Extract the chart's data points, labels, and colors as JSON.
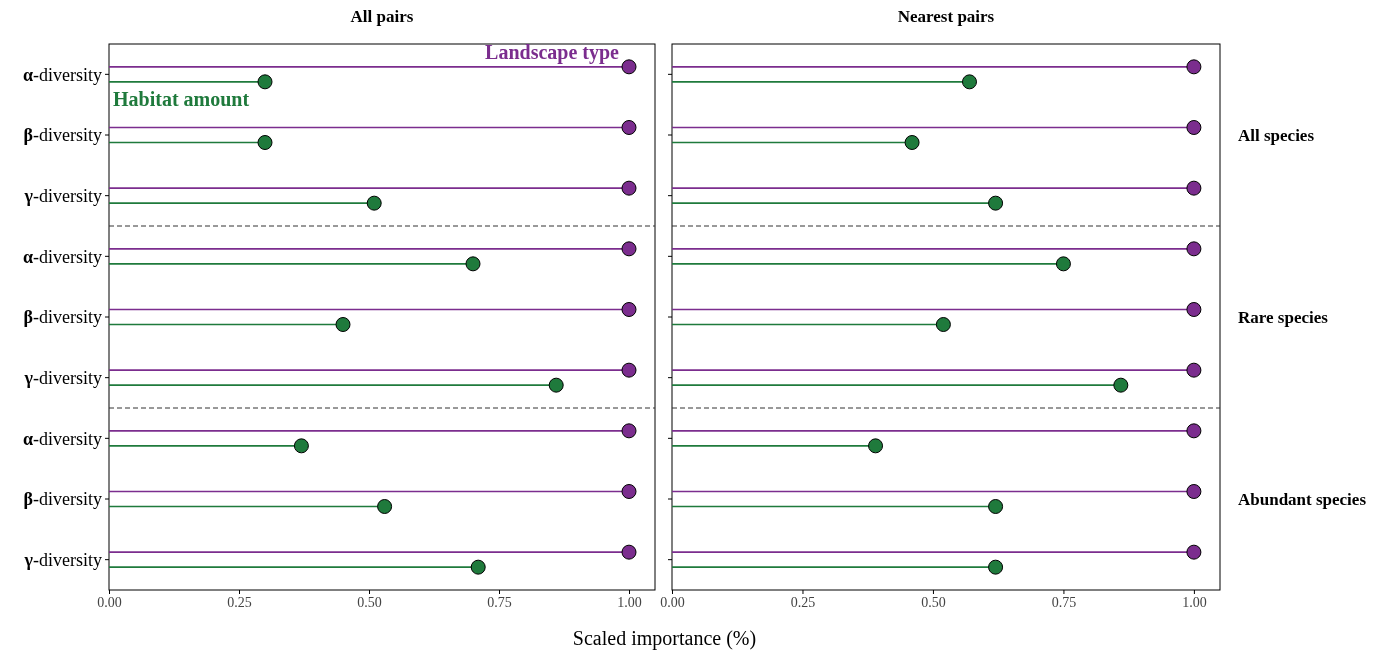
{
  "chart_data": [
    {
      "type": "lollipop",
      "orientation": "horizontal",
      "title": "All pairs",
      "xlabel": "Scaled importance (%)",
      "categories": [
        "α-diversity",
        "β-diversity",
        "γ-diversity",
        "α-diversity",
        "β-diversity",
        "γ-diversity",
        "α-diversity",
        "β-diversity",
        "γ-diversity"
      ],
      "series": [
        {
          "name": "Landscape type",
          "color": "#7b2d8e",
          "values": [
            1,
            1,
            1,
            1,
            1,
            1,
            1,
            1,
            1
          ]
        },
        {
          "name": "Habitat amount",
          "color": "#1f7a3c",
          "values": [
            0.3,
            0.3,
            0.51,
            0.7,
            0.45,
            0.86,
            0.37,
            0.53,
            0.71
          ]
        }
      ],
      "xlim": [
        0,
        1.05
      ],
      "xticks": [
        {
          "value": 0,
          "label": "0.00"
        },
        {
          "value": 0.25,
          "label": "0.25"
        },
        {
          "value": 0.5,
          "label": "0.50"
        },
        {
          "value": 0.75,
          "label": "0.75"
        },
        {
          "value": 1,
          "label": "1.00"
        }
      ],
      "marker": "circle",
      "grid": false
    },
    {
      "type": "lollipop",
      "orientation": "horizontal",
      "title": "Nearest pairs",
      "categories": [
        null,
        null,
        null,
        null,
        null,
        null,
        null,
        null,
        null
      ],
      "series": [
        {
          "color": "#7b2d8e",
          "values": [
            1,
            1,
            1,
            1,
            1,
            1,
            1,
            1,
            1
          ]
        },
        {
          "color": "#1f7a3c",
          "values": [
            0.57,
            0.46,
            0.62,
            0.75,
            0.52,
            0.86,
            0.39,
            0.62,
            0.62
          ]
        }
      ],
      "xlim": [
        0,
        1.05
      ],
      "xticks": [
        {
          "value": 0,
          "label": "0.00"
        },
        {
          "value": 0.25,
          "label": "0.25"
        },
        {
          "value": 0.5,
          "label": "0.50"
        },
        {
          "value": 0.75,
          "label": "0.75"
        },
        {
          "value": 1,
          "label": "1.00"
        }
      ],
      "annotations": [
        "All species",
        "Rare species",
        "Abundant species"
      ],
      "tick_labels": "x",
      "marker": "circle",
      "grid": false
    }
  ]
}
